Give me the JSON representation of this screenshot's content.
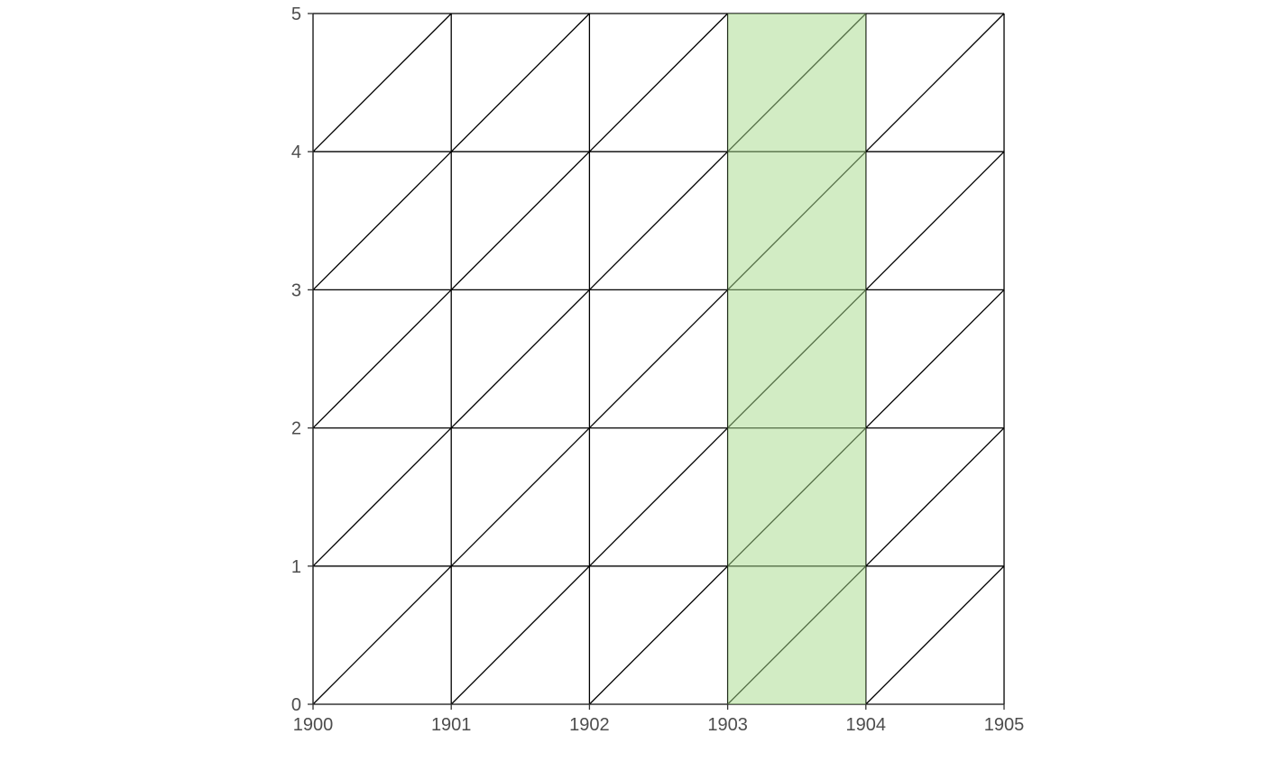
{
  "chart_data": {
    "type": "heatmap",
    "title": "",
    "xlabel": "",
    "ylabel": "",
    "x_ticks": [
      "1900",
      "1901",
      "1902",
      "1903",
      "1904",
      "1905"
    ],
    "y_ticks": [
      "0",
      "1",
      "2",
      "3",
      "4",
      "5"
    ],
    "xlim": [
      1900,
      1905
    ],
    "ylim": [
      0,
      5
    ],
    "grid": true,
    "grid_cell": {
      "dx": 1,
      "dy": 1
    },
    "diagonals": "each cell split by a line from its bottom-left to its top-right corner",
    "highlight": {
      "x_start": 1903,
      "x_end": 1904,
      "y_start": 0,
      "y_end": 5,
      "color": "#a6d98a"
    },
    "colors": {
      "grid_line": "#000000",
      "tick_label": "#4d4d4d",
      "background": "#ffffff"
    }
  }
}
